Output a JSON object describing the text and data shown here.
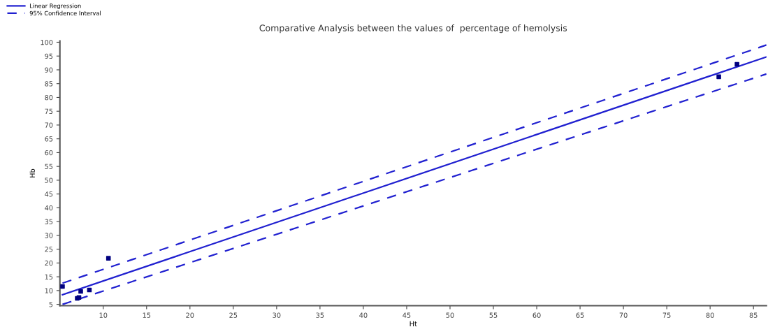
{
  "chart_data": {
    "type": "scatter",
    "title": "Comparative Analysis between the values of  percentage of hemolysis",
    "xlabel": "Ht",
    "ylabel": "Hb",
    "xlim": [
      5,
      86.5
    ],
    "ylim": [
      4.5,
      100.5
    ],
    "xticks": [
      10,
      15,
      20,
      25,
      30,
      35,
      40,
      45,
      50,
      55,
      60,
      65,
      70,
      75,
      80,
      85
    ],
    "yticks": [
      5,
      10,
      15,
      20,
      25,
      30,
      35,
      40,
      45,
      50,
      55,
      60,
      65,
      70,
      75,
      80,
      85,
      90,
      95,
      100
    ],
    "grid": false,
    "legend": "top left",
    "series": [
      {
        "marker": "square",
        "color": "#000080",
        "x": [
          5.3,
          7.0,
          7.2,
          7.4,
          8.4,
          10.6,
          81.0,
          83.1
        ],
        "values": [
          11.5,
          7.2,
          7.5,
          9.7,
          10.2,
          21.7,
          87.5,
          92.0
        ]
      },
      {
        "type": "line",
        "name": "Linear Regression",
        "line_style": "solid",
        "marker": "none",
        "color": "#2020d0",
        "x": [
          5.3,
          86.5
        ],
        "values": [
          8.5,
          94.7
        ]
      },
      {
        "type": "line",
        "name": "95% Confidence Interval",
        "line_style": "dashed",
        "marker": "none",
        "color": "#2020d0",
        "x": [
          5.3,
          86.5
        ],
        "values": [
          12.7,
          99.0
        ]
      },
      {
        "type": "line",
        "line_style": "dashed",
        "marker": "none",
        "color": "#2020d0",
        "x": [
          5.3,
          86.5
        ],
        "values": [
          5.0,
          88.5
        ]
      }
    ]
  }
}
